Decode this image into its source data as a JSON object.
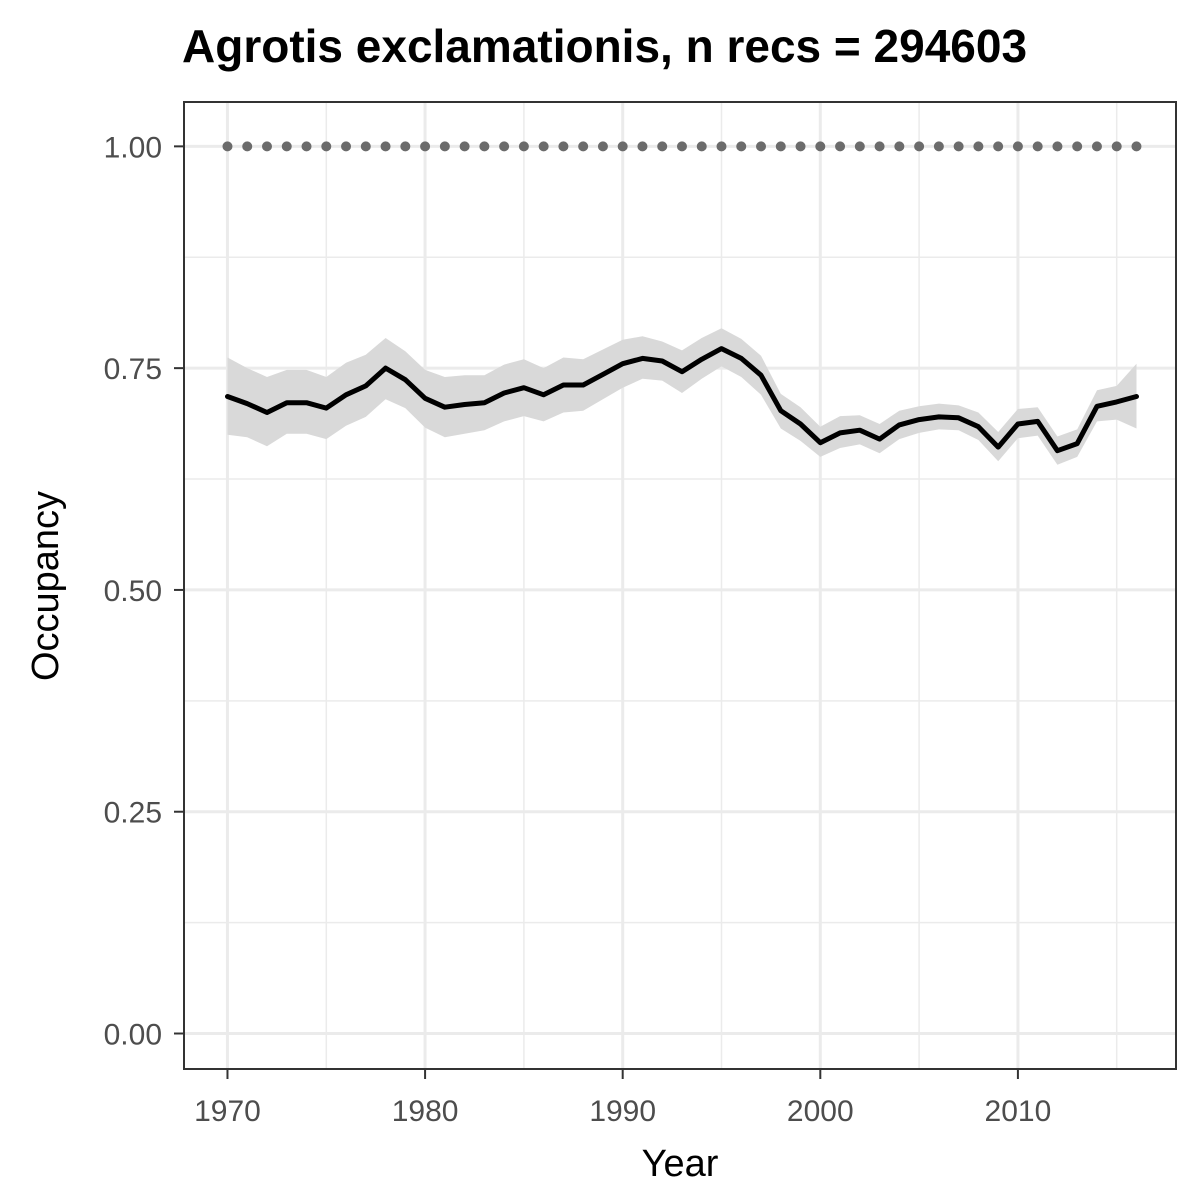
{
  "chart_data": {
    "type": "line",
    "title": "Agrotis exclamationis, n recs = 294603",
    "xlabel": "Year",
    "ylabel": "Occupancy",
    "xlim": [
      1967.8,
      2018.0
    ],
    "ylim": [
      -0.04,
      1.05
    ],
    "x_ticks": [
      1970,
      1980,
      1990,
      2000,
      2010
    ],
    "x_tick_labels": [
      "1970",
      "1980",
      "1990",
      "2000",
      "2010"
    ],
    "y_ticks": [
      0,
      0.25,
      0.5,
      0.75,
      1.0
    ],
    "y_tick_labels": [
      "0.00",
      "0.25",
      "0.50",
      "0.75",
      "1.00"
    ],
    "x_minor_ticks": [
      1975,
      1985,
      1995,
      2005,
      2015
    ],
    "y_minor_ticks": [
      0.125,
      0.375,
      0.625,
      0.875
    ],
    "grid": true,
    "legend": "none",
    "colors": {
      "line": "#000000",
      "ribbon": "#d9d9d9",
      "reference": "#6b6b6b",
      "grid": "#ebebeb",
      "panel_border": "#333333"
    },
    "series": [
      {
        "x": [
          1970,
          1971,
          1972,
          1973,
          1974,
          1975,
          1976,
          1977,
          1978,
          1979,
          1980,
          1981,
          1982,
          1983,
          1984,
          1985,
          1986,
          1987,
          1988,
          1989,
          1990,
          1991,
          1992,
          1993,
          1994,
          1995,
          1996,
          1997,
          1998,
          1999,
          2000,
          2001,
          2002,
          2003,
          2004,
          2005,
          2006,
          2007,
          2008,
          2009,
          2010,
          2011,
          2012,
          2013,
          2014,
          2015,
          2016
        ],
        "mean": [
          0.718,
          0.71,
          0.7,
          0.711,
          0.711,
          0.705,
          0.72,
          0.73,
          0.75,
          0.737,
          0.716,
          0.706,
          0.709,
          0.711,
          0.722,
          0.728,
          0.72,
          0.731,
          0.731,
          0.743,
          0.755,
          0.761,
          0.758,
          0.746,
          0.76,
          0.772,
          0.761,
          0.742,
          0.702,
          0.687,
          0.666,
          0.677,
          0.68,
          0.67,
          0.686,
          0.692,
          0.695,
          0.694,
          0.684,
          0.661,
          0.687,
          0.69,
          0.657,
          0.665,
          0.707,
          0.712,
          0.718
        ],
        "lower": [
          0.675,
          0.672,
          0.662,
          0.676,
          0.676,
          0.67,
          0.685,
          0.695,
          0.715,
          0.705,
          0.683,
          0.672,
          0.676,
          0.68,
          0.69,
          0.696,
          0.69,
          0.7,
          0.702,
          0.715,
          0.728,
          0.738,
          0.736,
          0.722,
          0.738,
          0.752,
          0.74,
          0.72,
          0.682,
          0.668,
          0.65,
          0.66,
          0.664,
          0.654,
          0.67,
          0.677,
          0.681,
          0.68,
          0.669,
          0.645,
          0.671,
          0.674,
          0.641,
          0.65,
          0.69,
          0.692,
          0.682
        ],
        "upper": [
          0.762,
          0.75,
          0.74,
          0.748,
          0.748,
          0.74,
          0.756,
          0.765,
          0.784,
          0.769,
          0.748,
          0.74,
          0.742,
          0.742,
          0.754,
          0.76,
          0.75,
          0.762,
          0.76,
          0.771,
          0.782,
          0.786,
          0.78,
          0.77,
          0.784,
          0.795,
          0.783,
          0.764,
          0.721,
          0.706,
          0.684,
          0.696,
          0.697,
          0.687,
          0.702,
          0.707,
          0.71,
          0.708,
          0.7,
          0.678,
          0.704,
          0.706,
          0.673,
          0.681,
          0.725,
          0.73,
          0.755
        ]
      },
      {
        "x": [
          1970,
          1971,
          1972,
          1973,
          1974,
          1975,
          1976,
          1977,
          1978,
          1979,
          1980,
          1981,
          1982,
          1983,
          1984,
          1985,
          1986,
          1987,
          1988,
          1989,
          1990,
          1991,
          1992,
          1993,
          1994,
          1995,
          1996,
          1997,
          1998,
          1999,
          2000,
          2001,
          2002,
          2003,
          2004,
          2005,
          2006,
          2007,
          2008,
          2009,
          2010,
          2011,
          2012,
          2013,
          2014,
          2015,
          2016
        ],
        "y": [
          1,
          1,
          1,
          1,
          1,
          1,
          1,
          1,
          1,
          1,
          1,
          1,
          1,
          1,
          1,
          1,
          1,
          1,
          1,
          1,
          1,
          1,
          1,
          1,
          1,
          1,
          1,
          1,
          1,
          1,
          1,
          1,
          1,
          1,
          1,
          1,
          1,
          1,
          1,
          1,
          1,
          1,
          1,
          1,
          1,
          1,
          1
        ],
        "style": "dotted"
      }
    ]
  }
}
